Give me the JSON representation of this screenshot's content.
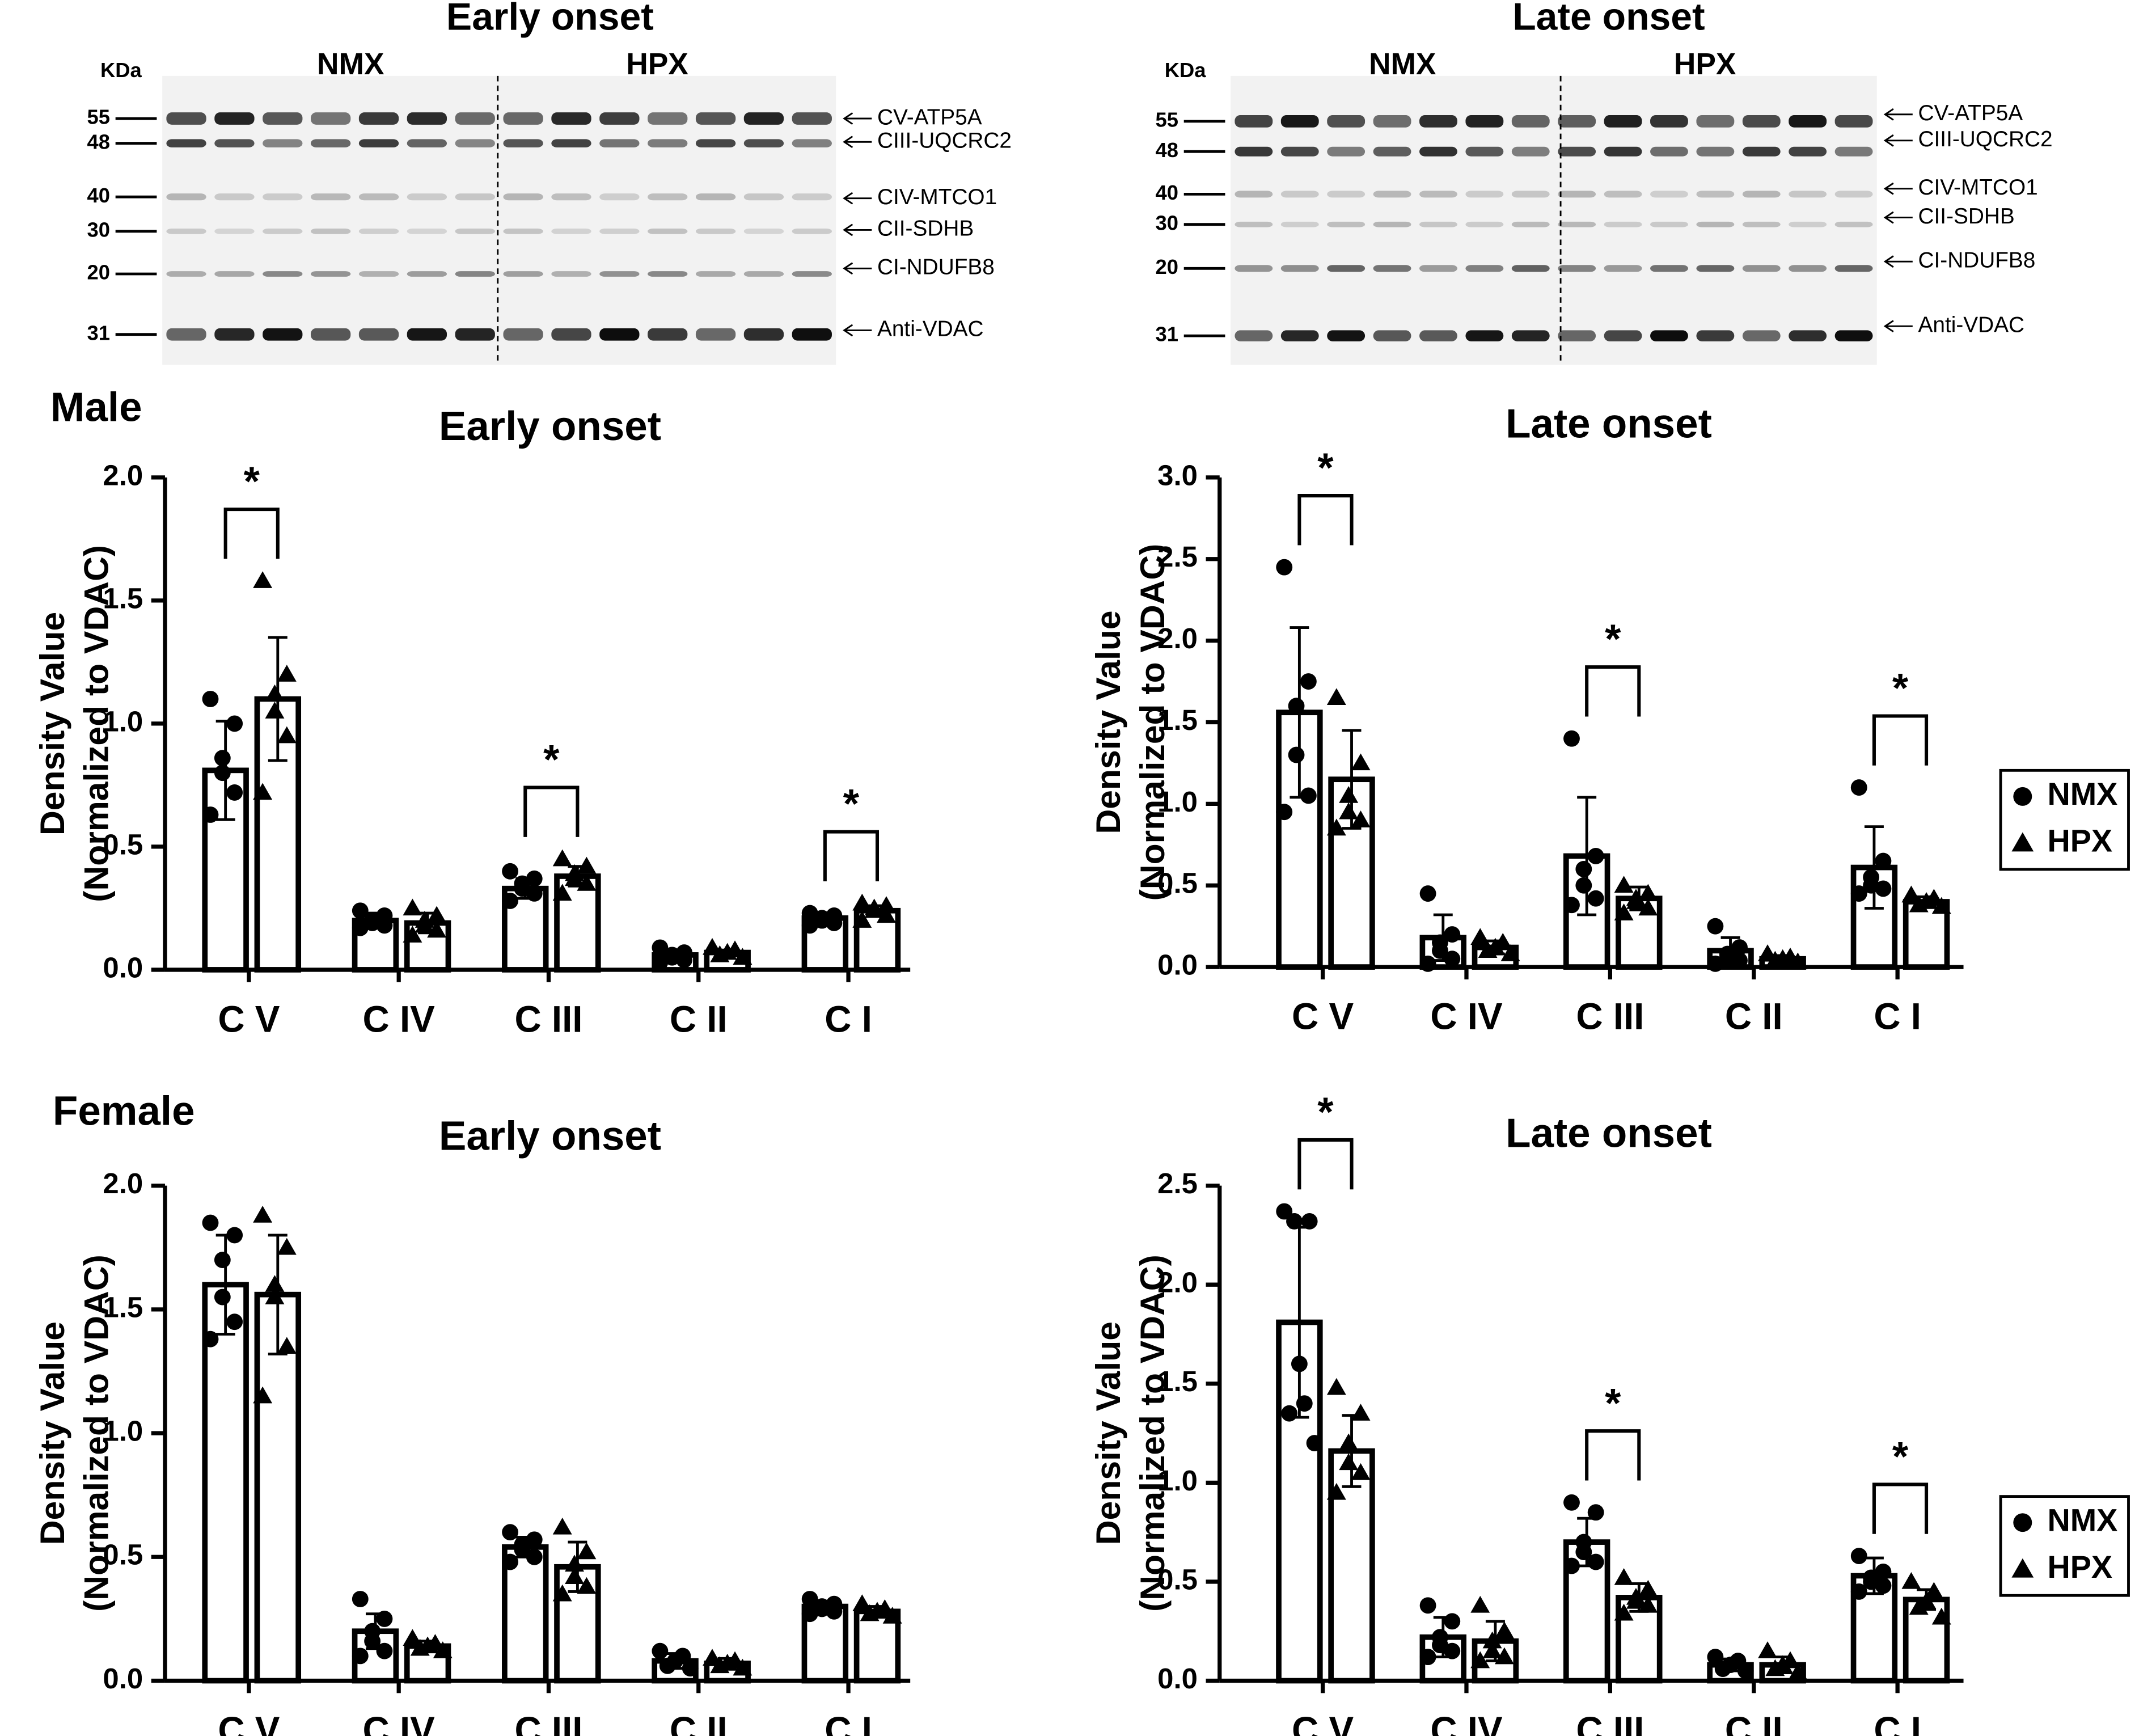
{
  "blots": [
    {
      "title": "Early onset",
      "unit": "KDa",
      "groups": [
        "NMX",
        "HPX"
      ],
      "markers": [
        "55",
        "48",
        "40",
        "30",
        "20",
        "31"
      ],
      "proteins": [
        "CV-ATP5A",
        "CIII-UQCRC2",
        "CIV-MTCO1",
        "CII-SDHB",
        "CI-NDUFB8",
        "Anti-VDAC"
      ]
    },
    {
      "title": "Late onset",
      "unit": "KDa",
      "groups": [
        "NMX",
        "HPX"
      ],
      "markers": [
        "55",
        "48",
        "40",
        "30",
        "20",
        "31"
      ],
      "proteins": [
        "CV-ATP5A",
        "CIII-UQCRC2",
        "CIV-MTCO1",
        "CII-SDHB",
        "CI-NDUFB8",
        "Anti-VDAC"
      ]
    }
  ],
  "panel_labels": [
    "Male",
    "Female"
  ],
  "chart_data": [
    {
      "type": "bar",
      "title": "Early onset",
      "ylabel": [
        "Density Value",
        "(Normalized to VDAC)"
      ],
      "categories": [
        "C V",
        "C IV",
        "C III",
        "C II",
        "C I"
      ],
      "ylim": [
        0,
        2
      ],
      "yticks": [
        {
          "value": 0,
          "label": "0.0"
        },
        {
          "value": 0.5,
          "label": "0.5"
        },
        {
          "value": 1,
          "label": "1.0"
        },
        {
          "value": 1.5,
          "label": "1.5"
        },
        {
          "value": 2,
          "label": "2.0"
        }
      ],
      "legend": false,
      "significance": {
        "label": "*",
        "categories": [
          "C V",
          "C III",
          "C I"
        ]
      },
      "series": [
        {
          "name": "NMX",
          "marker": "circle",
          "color": "#000000",
          "values": [
            0.81,
            0.2,
            0.33,
            0.06,
            0.21
          ],
          "errors": [
            0.2,
            0.03,
            0.04,
            0.02,
            0.02
          ],
          "points": [
            [
              1.1,
              1.0,
              0.86,
              0.8,
              0.72,
              0.63
            ],
            [
              0.24,
              0.22,
              0.2,
              0.19,
              0.18,
              0.17
            ],
            [
              0.4,
              0.37,
              0.35,
              0.33,
              0.31,
              0.28
            ],
            [
              0.09,
              0.07,
              0.06,
              0.05,
              0.04,
              0.03
            ],
            [
              0.23,
              0.22,
              0.21,
              0.2,
              0.19,
              0.18
            ]
          ]
        },
        {
          "name": "HPX",
          "marker": "triangle",
          "color": "#000000",
          "values": [
            1.1,
            0.19,
            0.38,
            0.07,
            0.24
          ],
          "errors": [
            0.25,
            0.04,
            0.04,
            0.01,
            0.02
          ],
          "points": [
            [
              1.58,
              1.2,
              1.12,
              1.05,
              0.95,
              0.72
            ],
            [
              0.25,
              0.22,
              0.2,
              0.18,
              0.16,
              0.14
            ],
            [
              0.45,
              0.42,
              0.39,
              0.37,
              0.35,
              0.31
            ],
            [
              0.09,
              0.08,
              0.07,
              0.06,
              0.05
            ],
            [
              0.27,
              0.26,
              0.25,
              0.24,
              0.22,
              0.2
            ]
          ]
        }
      ]
    },
    {
      "type": "bar",
      "title": "Late onset",
      "ylabel": [
        "Density Value",
        "(Normalized to VDAC)"
      ],
      "categories": [
        "C V",
        "C IV",
        "C III",
        "C II",
        "C I"
      ],
      "ylim": [
        0,
        3
      ],
      "yticks": [
        {
          "value": 0,
          "label": "0.0"
        },
        {
          "value": 0.5,
          "label": "0.5"
        },
        {
          "value": 1,
          "label": "1.0"
        },
        {
          "value": 1.5,
          "label": "1.5"
        },
        {
          "value": 2,
          "label": "2.0"
        },
        {
          "value": 2.5,
          "label": "2.5"
        },
        {
          "value": 3,
          "label": "3.0"
        }
      ],
      "legend": true,
      "significance": {
        "label": "*",
        "categories": [
          "C V",
          "C III",
          "C I"
        ]
      },
      "series": [
        {
          "name": "NMX",
          "marker": "circle",
          "color": "#000000",
          "values": [
            1.56,
            0.18,
            0.68,
            0.1,
            0.61
          ],
          "errors": [
            0.52,
            0.14,
            0.36,
            0.08,
            0.25
          ],
          "points": [
            [
              2.45,
              1.75,
              1.6,
              1.3,
              1.05,
              0.95
            ],
            [
              0.45,
              0.2,
              0.15,
              0.1,
              0.05,
              0.02
            ],
            [
              1.4,
              0.68,
              0.6,
              0.5,
              0.42,
              0.38
            ],
            [
              0.25,
              0.12,
              0.08,
              0.06,
              0.04,
              0.02
            ],
            [
              1.1,
              0.65,
              0.55,
              0.5,
              0.48,
              0.45
            ]
          ]
        },
        {
          "name": "HPX",
          "marker": "triangle",
          "color": "#000000",
          "values": [
            1.15,
            0.12,
            0.42,
            0.05,
            0.4
          ],
          "errors": [
            0.3,
            0.04,
            0.07,
            0.02,
            0.03
          ],
          "points": [
            [
              1.65,
              1.25,
              1.05,
              0.95,
              0.9,
              0.85
            ],
            [
              0.18,
              0.15,
              0.12,
              0.1,
              0.08
            ],
            [
              0.5,
              0.45,
              0.42,
              0.4,
              0.36,
              0.33
            ],
            [
              0.08,
              0.06,
              0.05,
              0.04,
              0.03
            ],
            [
              0.44,
              0.42,
              0.4,
              0.38,
              0.37
            ]
          ]
        }
      ]
    },
    {
      "type": "bar",
      "title": "Early onset",
      "ylabel": [
        "Density Value",
        "(Normalized to VDAC)"
      ],
      "categories": [
        "C V",
        "C IV",
        "C III",
        "C II",
        "C I"
      ],
      "ylim": [
        0,
        2
      ],
      "yticks": [
        {
          "value": 0,
          "label": "0.0"
        },
        {
          "value": 0.5,
          "label": "0.5"
        },
        {
          "value": 1,
          "label": "1.0"
        },
        {
          "value": 1.5,
          "label": "1.5"
        },
        {
          "value": 2,
          "label": "2.0"
        }
      ],
      "legend": false,
      "series": [
        {
          "name": "NMX",
          "marker": "circle",
          "color": "#000000",
          "values": [
            1.6,
            0.2,
            0.54,
            0.08,
            0.3
          ],
          "errors": [
            0.2,
            0.07,
            0.04,
            0.03,
            0.02
          ],
          "points": [
            [
              1.85,
              1.8,
              1.7,
              1.55,
              1.45,
              1.38
            ],
            [
              0.33,
              0.25,
              0.2,
              0.16,
              0.12,
              0.1
            ],
            [
              0.6,
              0.57,
              0.55,
              0.53,
              0.5,
              0.48
            ],
            [
              0.12,
              0.1,
              0.08,
              0.06,
              0.05
            ],
            [
              0.33,
              0.31,
              0.3,
              0.29,
              0.28,
              0.27
            ]
          ]
        },
        {
          "name": "HPX",
          "marker": "triangle",
          "color": "#000000",
          "values": [
            1.56,
            0.14,
            0.46,
            0.07,
            0.28
          ],
          "errors": [
            0.24,
            0.02,
            0.1,
            0.02,
            0.02
          ],
          "points": [
            [
              1.88,
              1.75,
              1.6,
              1.55,
              1.35,
              1.15
            ],
            [
              0.17,
              0.15,
              0.14,
              0.13,
              0.12
            ],
            [
              0.62,
              0.52,
              0.47,
              0.42,
              0.38,
              0.35
            ],
            [
              0.09,
              0.08,
              0.07,
              0.06,
              0.05
            ],
            [
              0.31,
              0.29,
              0.28,
              0.27,
              0.26
            ]
          ]
        }
      ]
    },
    {
      "type": "bar",
      "title": "Late onset",
      "ylabel": [
        "Density Value",
        "(Normalized to VDAC)"
      ],
      "categories": [
        "C V",
        "C IV",
        "C III",
        "C II",
        "C I"
      ],
      "ylim": [
        0,
        2.5
      ],
      "yticks": [
        {
          "value": 0,
          "label": "0.0"
        },
        {
          "value": 0.5,
          "label": "0.5"
        },
        {
          "value": 1,
          "label": "1.0"
        },
        {
          "value": 1.5,
          "label": "1.5"
        },
        {
          "value": 2,
          "label": "2.0"
        },
        {
          "value": 2.5,
          "label": "2.5"
        }
      ],
      "legend": true,
      "significance": {
        "label": "*",
        "categories": [
          "C V",
          "C III",
          "C I"
        ]
      },
      "series": [
        {
          "name": "NMX",
          "marker": "circle",
          "color": "#000000",
          "values": [
            1.81,
            0.22,
            0.7,
            0.08,
            0.53
          ],
          "errors": [
            0.48,
            0.1,
            0.12,
            0.03,
            0.09
          ],
          "points": [
            [
              2.37,
              2.32,
              2.32,
              1.6,
              1.4,
              1.35,
              1.2
            ],
            [
              0.38,
              0.3,
              0.22,
              0.18,
              0.15,
              0.12
            ],
            [
              0.9,
              0.85,
              0.7,
              0.65,
              0.6,
              0.58
            ],
            [
              0.12,
              0.1,
              0.08,
              0.06,
              0.05
            ],
            [
              0.63,
              0.55,
              0.52,
              0.5,
              0.48,
              0.45
            ]
          ]
        },
        {
          "name": "HPX",
          "marker": "triangle",
          "color": "#000000",
          "values": [
            1.16,
            0.2,
            0.42,
            0.08,
            0.41
          ],
          "errors": [
            0.18,
            0.1,
            0.07,
            0.04,
            0.05
          ],
          "points": [
            [
              1.48,
              1.35,
              1.2,
              1.1,
              1.05,
              0.95
            ],
            [
              0.38,
              0.25,
              0.2,
              0.15,
              0.12,
              0.1
            ],
            [
              0.52,
              0.46,
              0.42,
              0.4,
              0.38,
              0.34
            ],
            [
              0.15,
              0.1,
              0.08,
              0.06,
              0.04
            ],
            [
              0.5,
              0.45,
              0.4,
              0.37,
              0.32
            ]
          ]
        }
      ]
    }
  ]
}
